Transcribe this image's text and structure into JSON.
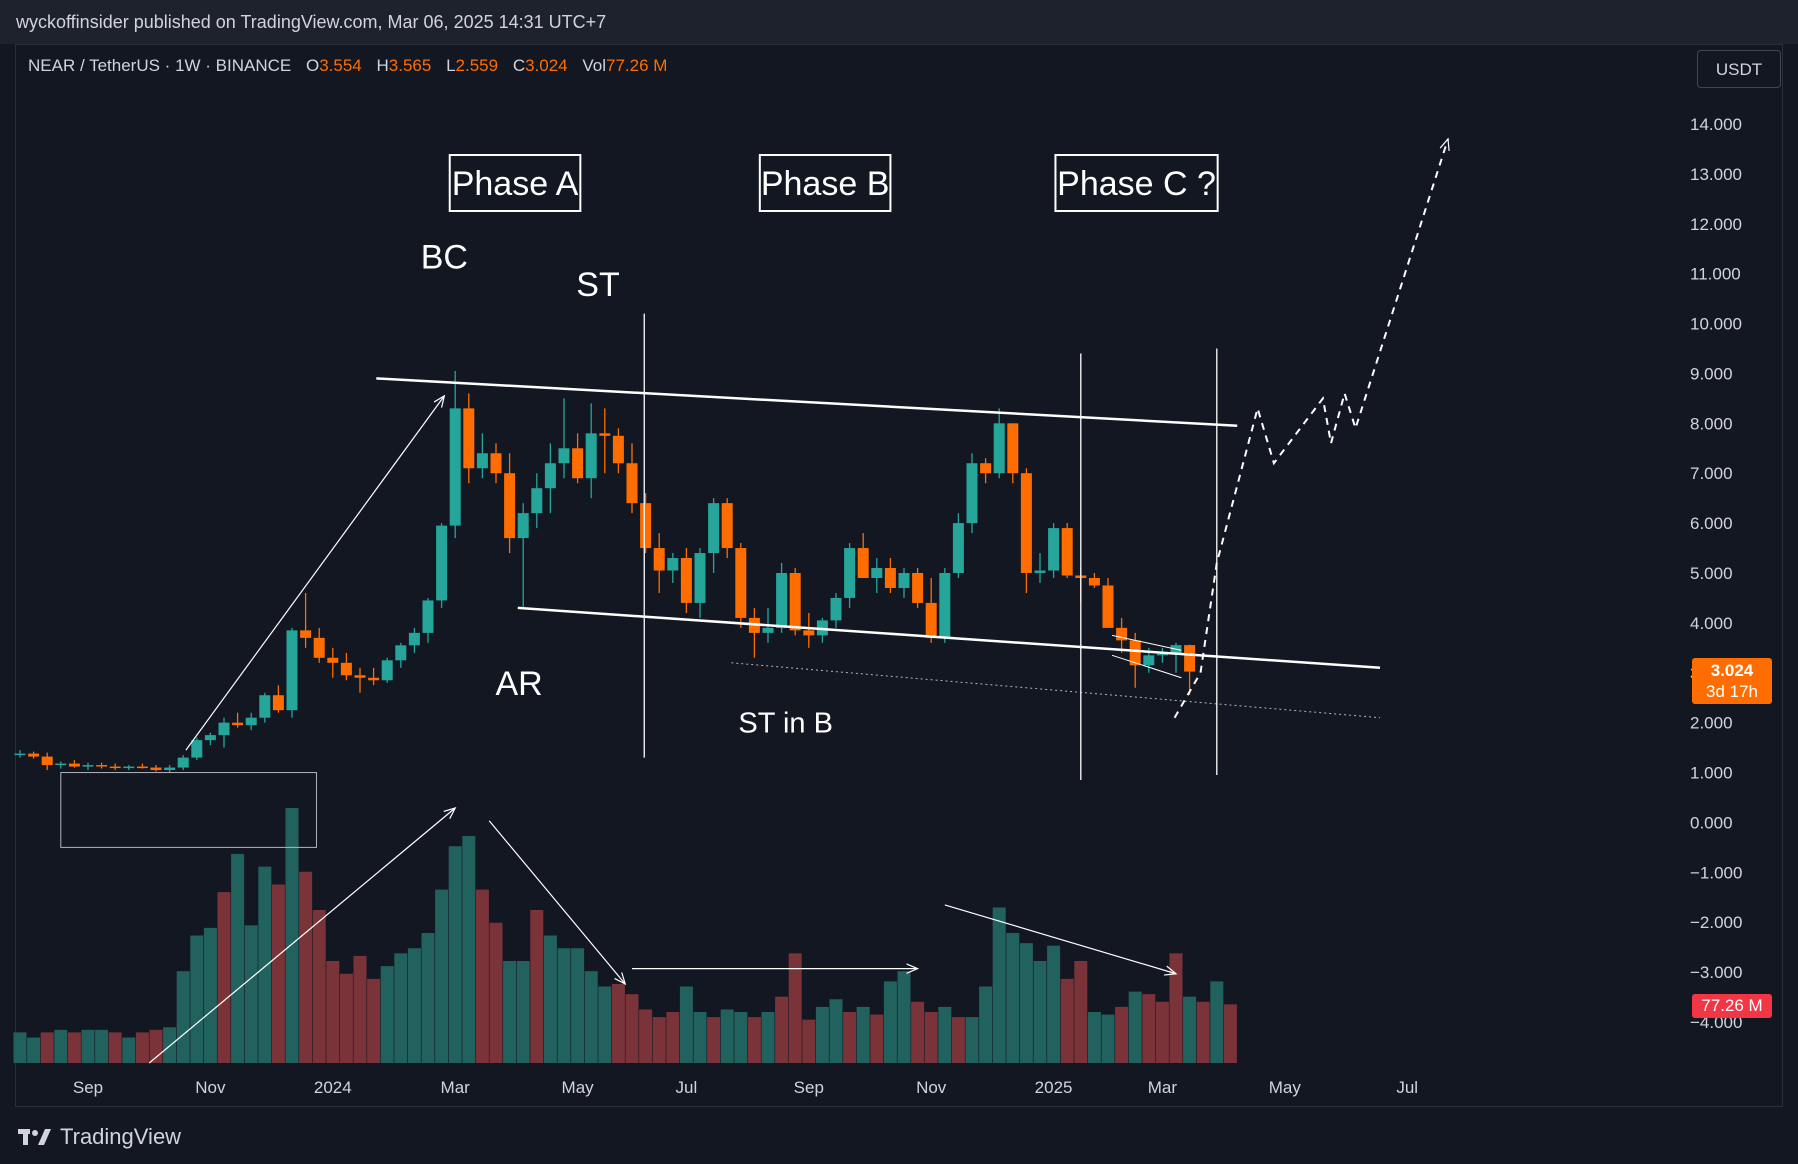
{
  "header": {
    "published_line": "wyckoffinsider published on TradingView.com, Mar 06, 2025 14:31 UTC+7"
  },
  "legend": {
    "symbol": "NEAR / TetherUS · 1W · BINANCE",
    "o_label": "O",
    "o_value": "3.554",
    "h_label": "H",
    "h_value": "3.565",
    "l_label": "L",
    "l_value": "2.559",
    "c_label": "C",
    "c_value": "3.024",
    "vol_label": "Vol",
    "vol_value": "77.26 M"
  },
  "currency_button": "USDT",
  "current_price": {
    "value": "3.024",
    "countdown": "3d 17h"
  },
  "current_volume": "77.26 M",
  "footer": {
    "brand": "TradingView"
  },
  "colors": {
    "up": "#26a69a",
    "down": "#ff6d00",
    "vol_up": "#22625e",
    "vol_down": "#7a3338",
    "background": "#131722",
    "annotation": "#ffffff"
  },
  "annotations": {
    "phases": [
      "Phase A",
      "Phase B",
      "Phase C ?"
    ],
    "labels": {
      "bc": "BC",
      "st": "ST",
      "ar": "AR",
      "st_in_b": "ST in B"
    }
  },
  "chart_data": {
    "type": "candlestick",
    "timeframe": "1W",
    "y_axis_labels": [
      "14.000",
      "13.000",
      "12.000",
      "11.000",
      "10.000",
      "9.000",
      "8.000",
      "7.000",
      "6.000",
      "5.000",
      "4.000",
      "3.000",
      "2.000",
      "1.000",
      "0.000",
      "−1.000",
      "−2.000",
      "−3.000",
      "−4.000"
    ],
    "ylim": [
      -4.3,
      14.3
    ],
    "x_axis_labels": [
      {
        "label": "Sep",
        "week": 5
      },
      {
        "label": "Nov",
        "week": 14
      },
      {
        "label": "2024",
        "week": 23
      },
      {
        "label": "Mar",
        "week": 32
      },
      {
        "label": "May",
        "week": 41
      },
      {
        "label": "Jul",
        "week": 49
      },
      {
        "label": "Sep",
        "week": 58
      },
      {
        "label": "Nov",
        "week": 67
      },
      {
        "label": "2025",
        "week": 76
      },
      {
        "label": "Mar",
        "week": 84
      },
      {
        "label": "May",
        "week": 93
      },
      {
        "label": "Jul",
        "week": 102
      }
    ],
    "ohlc": [
      [
        1.35,
        1.45,
        1.3,
        1.38
      ],
      [
        1.38,
        1.42,
        1.28,
        1.32
      ],
      [
        1.32,
        1.4,
        1.05,
        1.15
      ],
      [
        1.15,
        1.22,
        1.08,
        1.18
      ],
      [
        1.18,
        1.25,
        1.1,
        1.12
      ],
      [
        1.12,
        1.2,
        1.05,
        1.15
      ],
      [
        1.15,
        1.2,
        1.08,
        1.12
      ],
      [
        1.12,
        1.18,
        1.05,
        1.1
      ],
      [
        1.1,
        1.15,
        1.05,
        1.12
      ],
      [
        1.12,
        1.18,
        1.08,
        1.1
      ],
      [
        1.1,
        1.15,
        1.02,
        1.05
      ],
      [
        1.05,
        1.15,
        1.0,
        1.1
      ],
      [
        1.1,
        1.35,
        1.05,
        1.3
      ],
      [
        1.3,
        1.7,
        1.25,
        1.65
      ],
      [
        1.65,
        1.8,
        1.55,
        1.75
      ],
      [
        1.75,
        2.1,
        1.5,
        2.0
      ],
      [
        2.0,
        2.2,
        1.9,
        1.95
      ],
      [
        1.95,
        2.2,
        1.85,
        2.1
      ],
      [
        2.1,
        2.6,
        2.0,
        2.55
      ],
      [
        2.55,
        2.75,
        2.2,
        2.25
      ],
      [
        2.25,
        3.9,
        2.1,
        3.85
      ],
      [
        3.85,
        4.6,
        3.5,
        3.7
      ],
      [
        3.7,
        3.9,
        3.2,
        3.3
      ],
      [
        3.3,
        3.5,
        2.9,
        3.2
      ],
      [
        3.2,
        3.4,
        2.85,
        2.95
      ],
      [
        2.95,
        3.1,
        2.6,
        2.9
      ],
      [
        2.9,
        3.1,
        2.75,
        2.85
      ],
      [
        2.85,
        3.3,
        2.8,
        3.25
      ],
      [
        3.25,
        3.6,
        3.1,
        3.55
      ],
      [
        3.55,
        3.9,
        3.4,
        3.8
      ],
      [
        3.8,
        4.5,
        3.6,
        4.45
      ],
      [
        4.45,
        6.0,
        4.3,
        5.95
      ],
      [
        5.95,
        9.05,
        5.7,
        8.3
      ],
      [
        8.3,
        8.6,
        6.8,
        7.1
      ],
      [
        7.1,
        7.8,
        6.9,
        7.4
      ],
      [
        7.4,
        7.6,
        6.8,
        7.0
      ],
      [
        7.0,
        7.4,
        5.4,
        5.7
      ],
      [
        5.7,
        6.4,
        4.3,
        6.2
      ],
      [
        6.2,
        7.0,
        5.9,
        6.7
      ],
      [
        6.7,
        7.6,
        6.2,
        7.2
      ],
      [
        7.2,
        8.5,
        6.9,
        7.5
      ],
      [
        7.5,
        7.8,
        6.8,
        6.9
      ],
      [
        6.9,
        8.4,
        6.5,
        7.8
      ],
      [
        7.8,
        8.3,
        7.0,
        7.75
      ],
      [
        7.75,
        7.9,
        7.0,
        7.2
      ],
      [
        7.2,
        7.6,
        6.2,
        6.4
      ],
      [
        6.4,
        6.6,
        5.4,
        5.5
      ],
      [
        5.5,
        5.8,
        4.6,
        5.05
      ],
      [
        5.05,
        5.4,
        4.8,
        5.3
      ],
      [
        5.3,
        5.5,
        4.2,
        4.4
      ],
      [
        4.4,
        5.5,
        4.1,
        5.4
      ],
      [
        5.4,
        6.5,
        5.0,
        6.4
      ],
      [
        6.4,
        6.5,
        5.3,
        5.5
      ],
      [
        5.5,
        5.6,
        3.9,
        4.1
      ],
      [
        4.1,
        4.3,
        3.3,
        3.8
      ],
      [
        3.8,
        4.3,
        3.6,
        3.9
      ],
      [
        3.9,
        5.2,
        3.8,
        5.0
      ],
      [
        5.0,
        5.1,
        3.75,
        3.85
      ],
      [
        3.85,
        4.2,
        3.5,
        3.75
      ],
      [
        3.75,
        4.1,
        3.6,
        4.05
      ],
      [
        4.05,
        4.6,
        3.9,
        4.5
      ],
      [
        4.5,
        5.6,
        4.3,
        5.5
      ],
      [
        5.5,
        5.8,
        4.9,
        4.9
      ],
      [
        4.9,
        5.3,
        4.6,
        5.1
      ],
      [
        5.1,
        5.3,
        4.6,
        4.7
      ],
      [
        4.7,
        5.1,
        4.5,
        5.0
      ],
      [
        5.0,
        5.1,
        4.3,
        4.4
      ],
      [
        4.4,
        4.9,
        3.6,
        3.7
      ],
      [
        3.7,
        5.1,
        3.6,
        5.0
      ],
      [
        5.0,
        6.2,
        4.9,
        6.0
      ],
      [
        6.0,
        7.4,
        5.8,
        7.2
      ],
      [
        7.2,
        7.3,
        6.8,
        7.0
      ],
      [
        7.0,
        8.3,
        6.9,
        8.0
      ],
      [
        8.0,
        8.0,
        6.8,
        7.0
      ],
      [
        7.0,
        7.1,
        4.6,
        5.0
      ],
      [
        5.0,
        5.4,
        4.8,
        5.05
      ],
      [
        5.05,
        6.0,
        4.9,
        5.9
      ],
      [
        5.9,
        6.0,
        4.9,
        4.95
      ],
      [
        4.95,
        5.1,
        4.4,
        4.9
      ],
      [
        4.9,
        5.0,
        4.7,
        4.75
      ],
      [
        4.75,
        4.9,
        3.9,
        3.9
      ],
      [
        3.9,
        4.1,
        3.4,
        3.65
      ],
      [
        3.65,
        3.8,
        2.7,
        3.15
      ],
      [
        3.15,
        3.5,
        3.0,
        3.35
      ],
      [
        3.35,
        3.5,
        3.2,
        3.38
      ],
      [
        3.38,
        3.6,
        3.0,
        3.554
      ],
      [
        3.554,
        3.565,
        2.559,
        3.024
      ]
    ],
    "volume_relative": [
      [
        0.12,
        0
      ],
      [
        0.1,
        0
      ],
      [
        0.12,
        1
      ],
      [
        0.13,
        0
      ],
      [
        0.12,
        1
      ],
      [
        0.13,
        0
      ],
      [
        0.13,
        0
      ],
      [
        0.12,
        1
      ],
      [
        0.1,
        0
      ],
      [
        0.12,
        1
      ],
      [
        0.13,
        1
      ],
      [
        0.14,
        0
      ],
      [
        0.36,
        0
      ],
      [
        0.5,
        0
      ],
      [
        0.53,
        0
      ],
      [
        0.67,
        1
      ],
      [
        0.82,
        0
      ],
      [
        0.54,
        0
      ],
      [
        0.77,
        0
      ],
      [
        0.7,
        1
      ],
      [
        1.0,
        0
      ],
      [
        0.75,
        1
      ],
      [
        0.6,
        1
      ],
      [
        0.4,
        1
      ],
      [
        0.35,
        1
      ],
      [
        0.42,
        1
      ],
      [
        0.33,
        1
      ],
      [
        0.38,
        0
      ],
      [
        0.43,
        0
      ],
      [
        0.45,
        0
      ],
      [
        0.51,
        0
      ],
      [
        0.68,
        0
      ],
      [
        0.85,
        0
      ],
      [
        0.89,
        0
      ],
      [
        0.68,
        1
      ],
      [
        0.55,
        1
      ],
      [
        0.4,
        0
      ],
      [
        0.4,
        0
      ],
      [
        0.6,
        1
      ],
      [
        0.5,
        0
      ],
      [
        0.45,
        0
      ],
      [
        0.45,
        0
      ],
      [
        0.36,
        0
      ],
      [
        0.3,
        0
      ],
      [
        0.31,
        1
      ],
      [
        0.27,
        1
      ],
      [
        0.21,
        1
      ],
      [
        0.18,
        1
      ],
      [
        0.2,
        1
      ],
      [
        0.3,
        0
      ],
      [
        0.2,
        0
      ],
      [
        0.18,
        1
      ],
      [
        0.21,
        0
      ],
      [
        0.2,
        0
      ],
      [
        0.18,
        1
      ],
      [
        0.2,
        0
      ],
      [
        0.26,
        1
      ],
      [
        0.43,
        1
      ],
      [
        0.17,
        1
      ],
      [
        0.22,
        0
      ],
      [
        0.25,
        0
      ],
      [
        0.2,
        1
      ],
      [
        0.22,
        0
      ],
      [
        0.19,
        1
      ],
      [
        0.32,
        0
      ],
      [
        0.36,
        0
      ],
      [
        0.24,
        1
      ],
      [
        0.2,
        1
      ],
      [
        0.22,
        0
      ],
      [
        0.18,
        1
      ],
      [
        0.18,
        0
      ],
      [
        0.3,
        0
      ],
      [
        0.61,
        0
      ],
      [
        0.51,
        0
      ],
      [
        0.47,
        0
      ],
      [
        0.4,
        0
      ],
      [
        0.46,
        0
      ],
      [
        0.33,
        1
      ],
      [
        0.4,
        1
      ],
      [
        0.2,
        0
      ],
      [
        0.19,
        0
      ],
      [
        0.22,
        1
      ],
      [
        0.28,
        0
      ],
      [
        0.27,
        1
      ],
      [
        0.24,
        1
      ],
      [
        0.43,
        1
      ],
      [
        0.26,
        0
      ],
      [
        0.24,
        1
      ],
      [
        0.32,
        0
      ],
      [
        0.23,
        1
      ]
    ],
    "annotation_lines": {
      "resistance": [
        [
          8.9,
          26.2
        ],
        [
          7.95,
          89.5
        ]
      ],
      "support": [
        [
          4.3,
          36.6
        ],
        [
          3.1,
          100.0
        ]
      ],
      "dotted_support": [
        [
          3.2,
          52.3
        ],
        [
          2.1,
          100.0
        ]
      ],
      "accumulation_box": [
        [
          1.0,
          3.0
        ],
        [
          -0.5,
          21.8
        ]
      ],
      "markup_arrow": [
        [
          1.45,
          12.2
        ],
        [
          8.55,
          31.2
        ]
      ],
      "vertical_lines": [
        [
          10.2,
          1.3,
          45.9
        ],
        [
          9.4,
          0.85,
          78.0
        ],
        [
          9.5,
          0.95,
          88.0
        ]
      ],
      "projection_path": [
        [
          2.1,
          84.9
        ],
        [
          3.0,
          86.8
        ],
        [
          5.2,
          88.0
        ],
        [
          8.3,
          91.0
        ],
        [
          7.2,
          92.2
        ],
        [
          8.5,
          95.8
        ],
        [
          7.6,
          96.4
        ],
        [
          8.6,
          97.4
        ],
        [
          7.9,
          98.2
        ],
        [
          13.7,
          105.0
        ]
      ],
      "wedge": [
        [
          3.75,
          80.3
        ],
        [
          3.45,
          85.4
        ],
        [
          3.35,
          80.3
        ],
        [
          2.9,
          85.4
        ]
      ],
      "vol_arrows": [
        [
          [
            0.0,
            9.5
          ],
          [
            1.0,
            32.0
          ]
        ],
        [
          [
            0.95,
            34.5
          ],
          [
            0.31,
            44.5
          ]
        ],
        [
          [
            0.37,
            45.0
          ],
          [
            0.37,
            66.0
          ]
        ],
        [
          [
            0.62,
            68.0
          ],
          [
            0.35,
            85.0
          ]
        ]
      ]
    }
  }
}
